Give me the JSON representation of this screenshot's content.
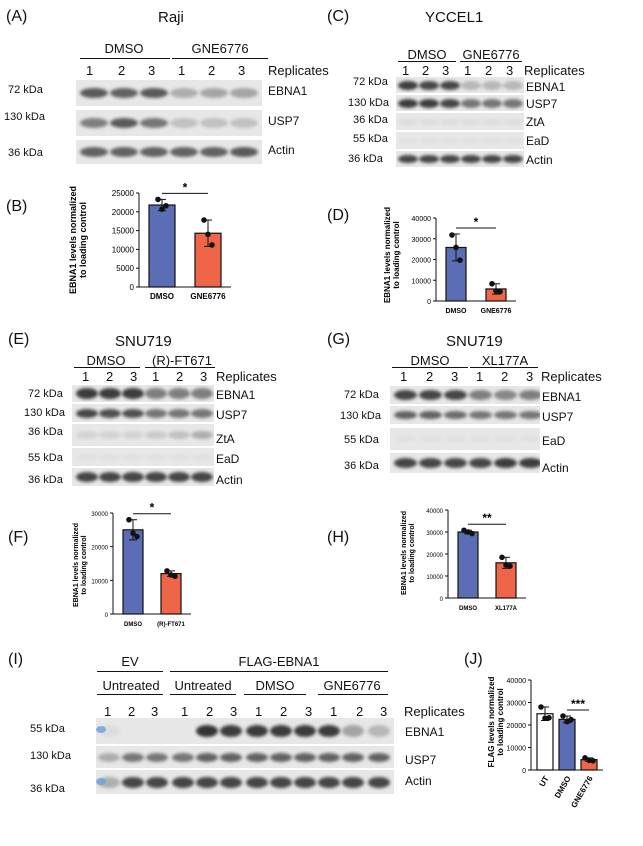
{
  "panels": {
    "A": {
      "label": "(A)",
      "title": "Raji",
      "groups": [
        "DMSO",
        "GNE6776"
      ],
      "replicates": [
        "1",
        "2",
        "3",
        "1",
        "2",
        "3"
      ],
      "replicates_label": "Replicates",
      "rows": [
        {
          "kda": "72 kDa",
          "protein": "EBNA1"
        },
        {
          "kda": "130 kDa",
          "protein": "USP7"
        },
        {
          "kda": "36 kDa",
          "protein": "Actin"
        }
      ]
    },
    "C": {
      "label": "(C)",
      "title": "YCCEL1",
      "groups": [
        "DMSO",
        "GNE6776"
      ],
      "replicates": [
        "1",
        "2",
        "3",
        "1",
        "2",
        "3"
      ],
      "replicates_label": "Replicates",
      "rows": [
        {
          "kda": "72 kDa",
          "protein": "EBNA1"
        },
        {
          "kda": "130 kDa",
          "protein": "USP7"
        },
        {
          "kda": "36 kDa",
          "protein": "ZtA"
        },
        {
          "kda": "55 kDa",
          "protein": "EaD"
        },
        {
          "kda": "36 kDa",
          "protein": "Actin"
        }
      ]
    },
    "E": {
      "label": "(E)",
      "title": "SNU719",
      "groups": [
        "DMSO",
        "(R)-FT671"
      ],
      "replicates": [
        "1",
        "2",
        "3",
        "1",
        "2",
        "3"
      ],
      "replicates_label": "Replicates",
      "rows": [
        {
          "kda": "72 kDa",
          "protein": "EBNA1"
        },
        {
          "kda": "130 kDa",
          "protein": "USP7"
        },
        {
          "kda": "36 kDa",
          "protein": "ZtA"
        },
        {
          "kda": "55 kDa",
          "protein": "EaD"
        },
        {
          "kda": "36 kDa",
          "protein": "Actin"
        }
      ]
    },
    "G": {
      "label": "(G)",
      "title": "SNU719",
      "groups": [
        "DMSO",
        "XL177A"
      ],
      "replicates": [
        "1",
        "2",
        "3",
        "1",
        "2",
        "3"
      ],
      "replicates_label": "Replicates",
      "rows": [
        {
          "kda": "72 kDa",
          "protein": "EBNA1"
        },
        {
          "kda": "130 kDa",
          "protein": "USP7"
        },
        {
          "kda": "55 kDa",
          "protein": "EaD"
        },
        {
          "kda": "36 kDa",
          "protein": "Actin"
        }
      ]
    },
    "I": {
      "label": "(I)",
      "top_groups": [
        "EV",
        "FLAG-EBNA1"
      ],
      "sub_groups": [
        "Untreated",
        "Untreated",
        "DMSO",
        "GNE6776"
      ],
      "replicates": [
        "1",
        "2",
        "3",
        "1",
        "2",
        "3",
        "1",
        "2",
        "3",
        "1",
        "2",
        "3"
      ],
      "replicates_label": "Replicates",
      "rows": [
        {
          "kda": "55 kDa",
          "protein": "EBNA1"
        },
        {
          "kda": "130 kDa",
          "protein": "USP7"
        },
        {
          "kda": "36 kDa",
          "protein": "Actin"
        }
      ]
    },
    "B": {
      "label": "(B)"
    },
    "D": {
      "label": "(D)"
    },
    "F": {
      "label": "(F)"
    },
    "H": {
      "label": "(H)"
    },
    "J": {
      "label": "(J)"
    }
  },
  "colors": {
    "dmso": "#5b6db5",
    "treated": "#ef6548",
    "untreated": "#ffffff",
    "blot_bg": "#e7e7e7",
    "band": "#2a2a2a"
  },
  "chart_data": [
    {
      "id": "B",
      "type": "bar",
      "ylabel": "EBNA1 levels normalized to loading control",
      "categories": [
        "DMSO",
        "GNE6776"
      ],
      "values": [
        21800,
        14300
      ],
      "errors": [
        1500,
        3500
      ],
      "points": [
        [
          23300,
          20700,
          21600
        ],
        [
          17800,
          14000,
          11200
        ]
      ],
      "ylim": [
        0,
        25000
      ],
      "yticks": [
        0,
        5000,
        10000,
        15000,
        20000,
        25000
      ],
      "significance": "*",
      "colors": [
        "#5b6db5",
        "#ef6548"
      ]
    },
    {
      "id": "D",
      "type": "bar",
      "ylabel": "EBNA1 levels normalized to loading control",
      "categories": [
        "DMSO",
        "GNE6776"
      ],
      "values": [
        25800,
        5800
      ],
      "errors": [
        6500,
        2500
      ],
      "points": [
        [
          31800,
          25800,
          19700
        ],
        [
          8300,
          4800,
          4500
        ]
      ],
      "ylim": [
        0,
        40000
      ],
      "yticks": [
        0,
        10000,
        20000,
        30000,
        40000
      ],
      "significance": "*",
      "colors": [
        "#5b6db5",
        "#ef6548"
      ]
    },
    {
      "id": "F",
      "type": "bar",
      "ylabel": "EBNA1 levels normalized to loading control",
      "categories": [
        "DMSO",
        "(R)-FT671"
      ],
      "values": [
        25000,
        12000
      ],
      "errors": [
        3000,
        800
      ],
      "points": [
        [
          28000,
          24000,
          23000
        ],
        [
          12800,
          11600,
          11200
        ]
      ],
      "ylim": [
        0,
        30000
      ],
      "yticks": [
        0,
        10000,
        20000,
        30000
      ],
      "significance": "*",
      "colors": [
        "#5b6db5",
        "#ef6548"
      ]
    },
    {
      "id": "H",
      "type": "bar",
      "ylabel": "EBNA1 levels normalized to loading control",
      "categories": [
        "DMSO",
        "XL177A"
      ],
      "values": [
        30000,
        16000
      ],
      "errors": [
        800,
        2500
      ],
      "points": [
        [
          30800,
          30000,
          29300
        ],
        [
          18500,
          15000,
          14500
        ]
      ],
      "ylim": [
        0,
        40000
      ],
      "yticks": [
        0,
        10000,
        20000,
        30000,
        40000
      ],
      "significance": "**",
      "colors": [
        "#5b6db5",
        "#ef6548"
      ]
    },
    {
      "id": "J",
      "type": "bar",
      "ylabel": "FLAG levels normalized to loading control",
      "categories": [
        "UT",
        "DMSO",
        "GNE6776"
      ],
      "values": [
        25000,
        22500,
        4600
      ],
      "errors": [
        3000,
        1500,
        800
      ],
      "points": [
        [
          28000,
          23000,
          23200
        ],
        [
          24000,
          21500,
          22400
        ],
        [
          5400,
          4300,
          4100
        ]
      ],
      "ylim": [
        0,
        40000
      ],
      "yticks": [
        0,
        10000,
        20000,
        30000,
        40000
      ],
      "significance": "***",
      "colors": [
        "#ffffff",
        "#5b6db5",
        "#ef6548"
      ]
    }
  ]
}
